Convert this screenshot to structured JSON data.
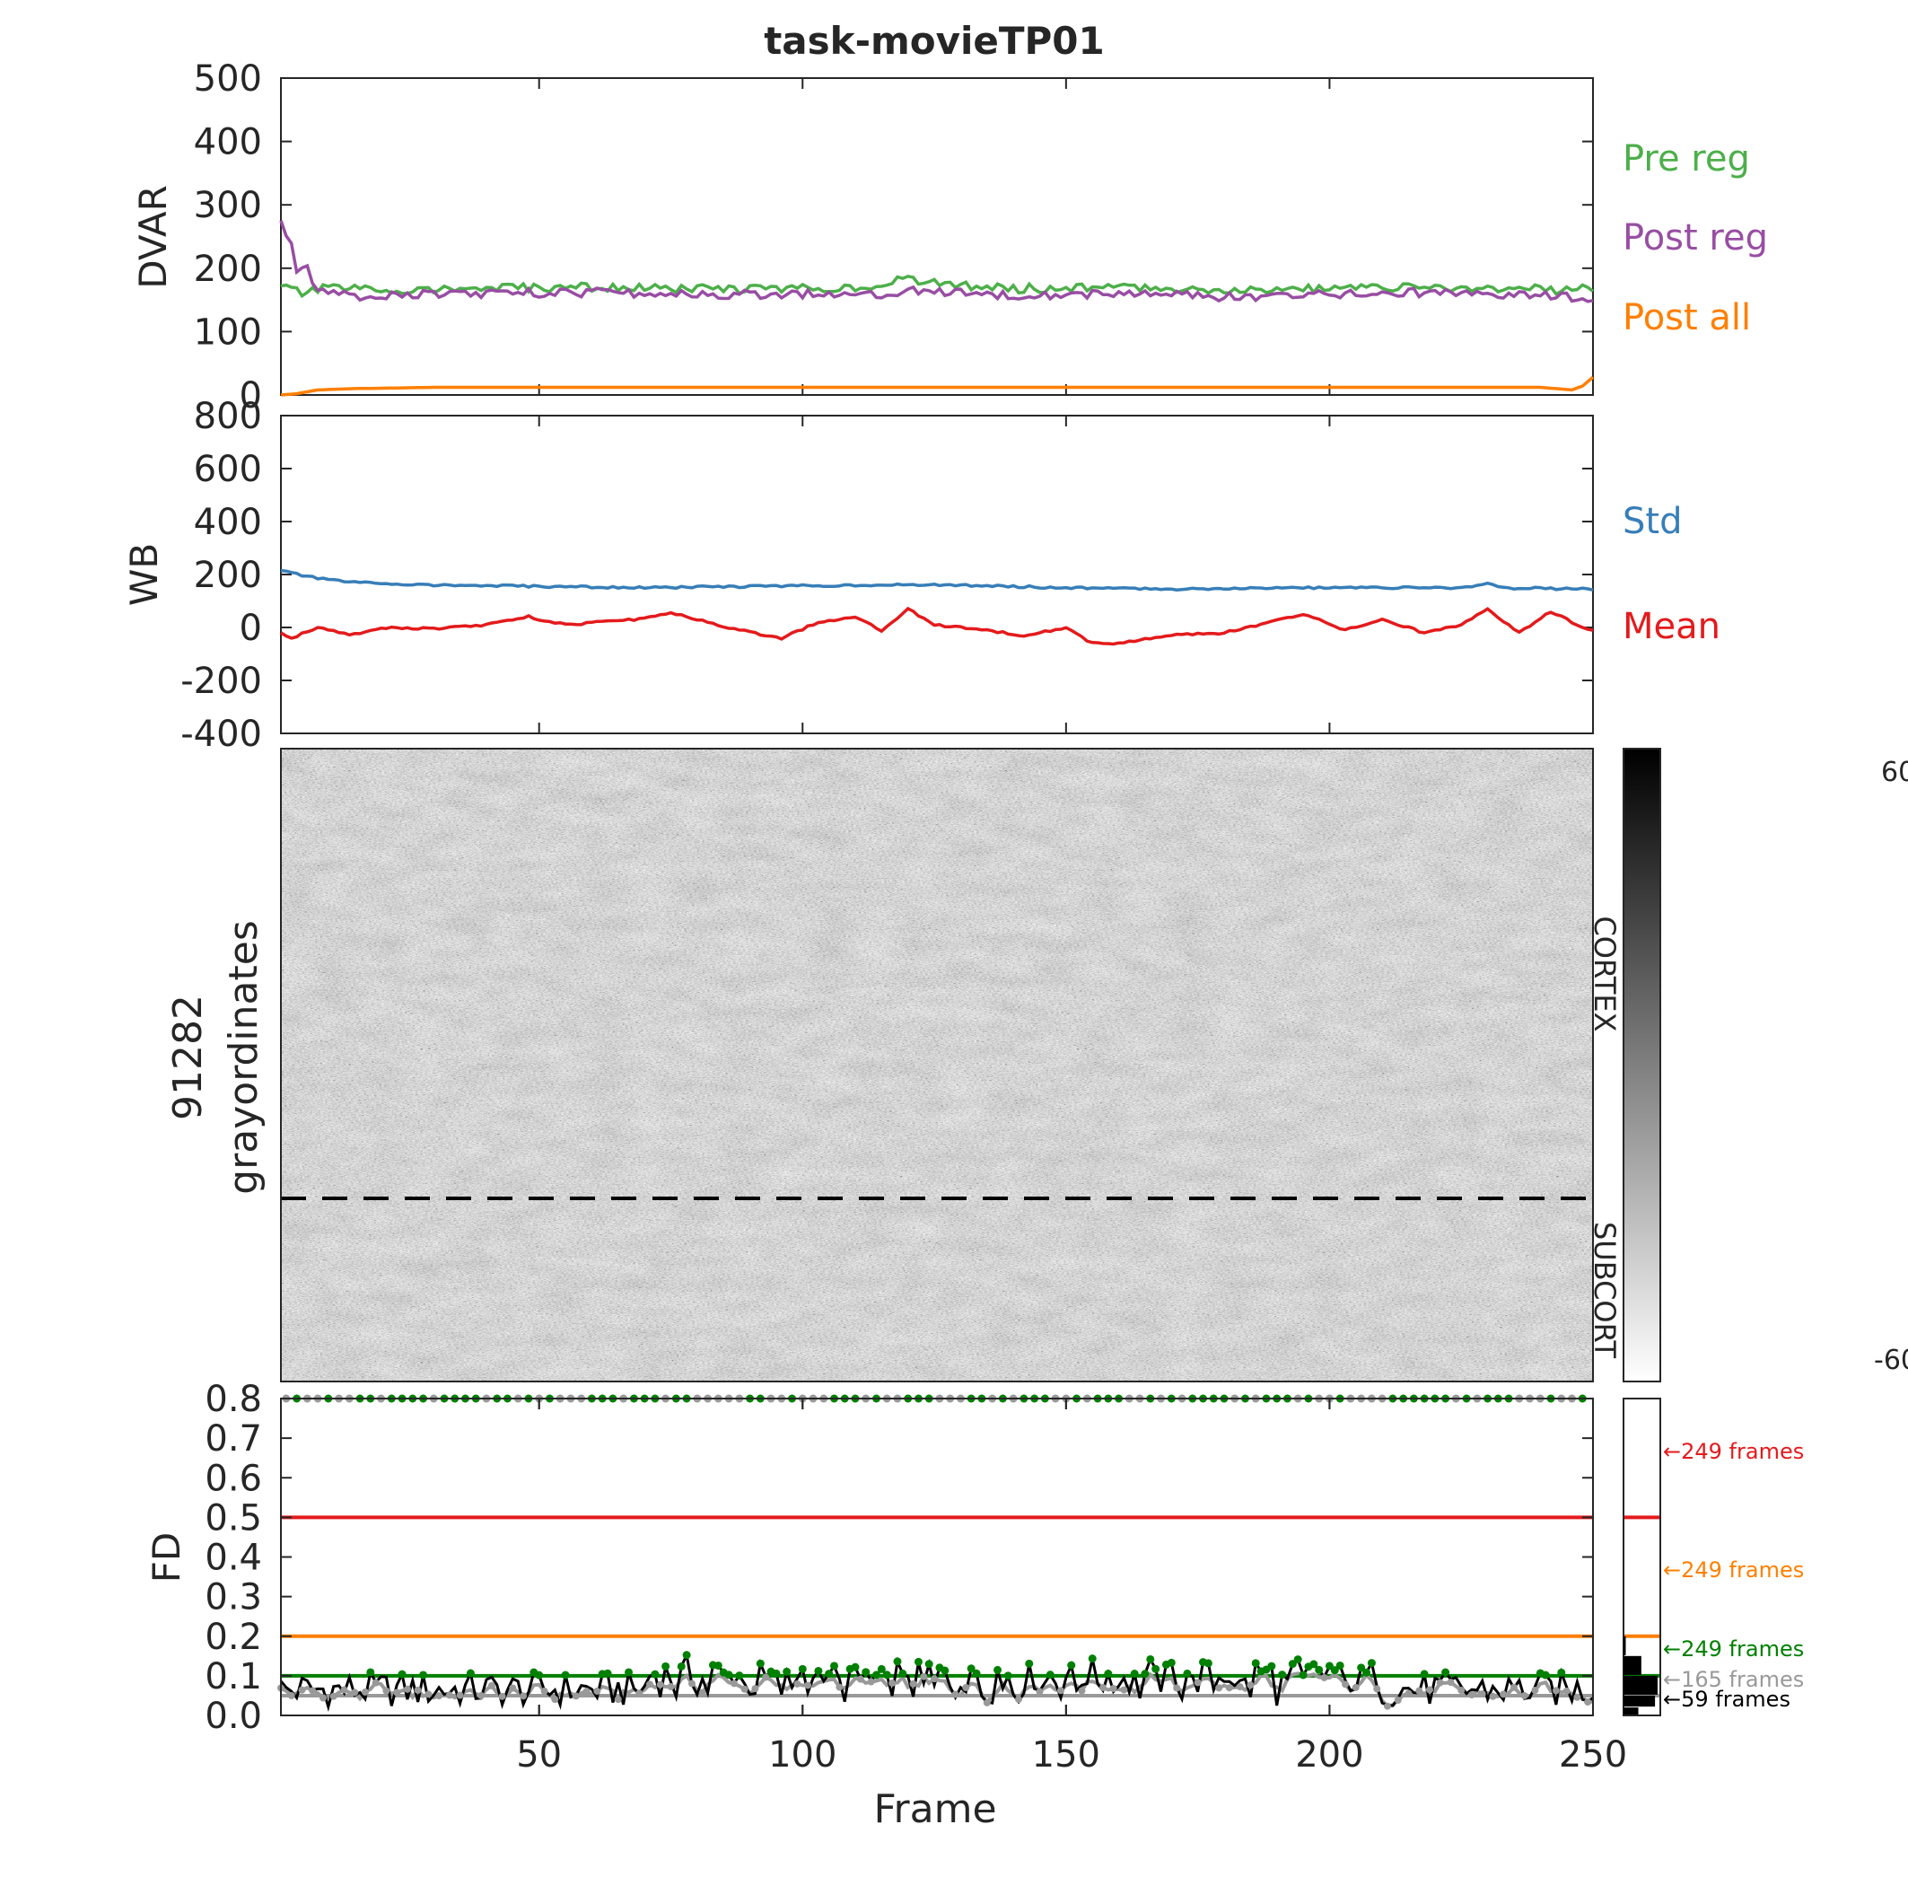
{
  "title": "task-movieTP01",
  "chart_data": [
    {
      "type": "line",
      "ylabel": "DVAR",
      "xlim": [
        1,
        250
      ],
      "ylim": [
        0,
        500
      ],
      "yticks": [
        "0",
        "100",
        "200",
        "300",
        "400",
        "500"
      ],
      "legend_placement": "right",
      "series": [
        {
          "name": "Pre reg",
          "color": "#4daf4a",
          "x": [
            1,
            3,
            6,
            10,
            20,
            40,
            60,
            80,
            100,
            115,
            120,
            122,
            140,
            160,
            180,
            200,
            215,
            230,
            245,
            250
          ],
          "values": [
            172,
            165,
            160,
            170,
            165,
            168,
            170,
            167,
            168,
            172,
            185,
            178,
            168,
            170,
            166,
            168,
            170,
            168,
            166,
            170
          ]
        },
        {
          "name": "Post reg",
          "color": "#984ea3",
          "x": [
            1,
            2,
            3,
            4,
            5,
            6,
            7,
            8,
            10,
            15,
            20,
            40,
            60,
            80,
            100,
            115,
            120,
            140,
            160,
            180,
            200,
            220,
            240,
            250
          ],
          "values": [
            275,
            255,
            240,
            200,
            195,
            205,
            180,
            165,
            160,
            155,
            158,
            160,
            162,
            158,
            160,
            160,
            165,
            158,
            160,
            155,
            158,
            162,
            158,
            150
          ]
        },
        {
          "name": "Post all",
          "color": "#ff7f00",
          "x": [
            1,
            4,
            8,
            15,
            30,
            60,
            100,
            150,
            200,
            240,
            246,
            248,
            250
          ],
          "values": [
            0,
            2,
            8,
            10,
            12,
            12,
            12,
            12,
            12,
            12,
            8,
            14,
            28
          ]
        }
      ]
    },
    {
      "type": "line",
      "ylabel": "WB",
      "xlim": [
        1,
        250
      ],
      "ylim": [
        -400,
        800
      ],
      "yticks": [
        "-400",
        "-200",
        "0",
        "200",
        "400",
        "600",
        "800"
      ],
      "legend_placement": "right",
      "series": [
        {
          "name": "Std",
          "color": "#377eb8",
          "x": [
            1,
            3,
            8,
            15,
            30,
            50,
            70,
            90,
            110,
            130,
            150,
            170,
            190,
            210,
            225,
            230,
            235,
            240,
            250
          ],
          "values": [
            215,
            205,
            185,
            170,
            160,
            155,
            150,
            155,
            160,
            160,
            150,
            145,
            150,
            150,
            150,
            165,
            145,
            148,
            145
          ]
        },
        {
          "name": "Mean",
          "color": "#e41a1c",
          "x": [
            1,
            3,
            8,
            14,
            20,
            30,
            40,
            48,
            55,
            68,
            75,
            80,
            88,
            96,
            103,
            110,
            115,
            120,
            125,
            135,
            142,
            150,
            155,
            160,
            170,
            180,
            195,
            203,
            210,
            218,
            225,
            230,
            236,
            242,
            248,
            250
          ],
          "values": [
            -20,
            -40,
            0,
            -30,
            0,
            -5,
            10,
            40,
            10,
            30,
            55,
            30,
            -10,
            -40,
            20,
            40,
            -10,
            70,
            10,
            -10,
            -30,
            0,
            -60,
            -60,
            -30,
            -20,
            50,
            -10,
            30,
            -20,
            10,
            70,
            -20,
            60,
            0,
            -10
          ]
        }
      ]
    },
    {
      "type": "heatmap",
      "ylabel_lines": [
        "91282",
        "grayordinates"
      ],
      "region_labels": [
        "CORTEX",
        "SUBCORT"
      ],
      "colorbar": {
        "max_label": "60",
        "min_label": "-60"
      },
      "xlim": [
        1,
        250
      ],
      "cortex_fraction": 0.71
    },
    {
      "type": "line",
      "ylabel": "FD",
      "xlabel": "Frame",
      "xlim": [
        1,
        250
      ],
      "ylim": [
        0,
        0.8
      ],
      "yticks": [
        "0.0",
        "0.1",
        "0.2",
        "0.3",
        "0.4",
        "0.5",
        "0.6",
        "0.7",
        "0.8"
      ],
      "xticks": [
        "50",
        "100",
        "150",
        "200",
        "250"
      ],
      "thresholds": [
        {
          "value": 0.5,
          "color": "#e41a1c",
          "label": "249 frames"
        },
        {
          "value": 0.2,
          "color": "#ff7f00",
          "label": "249 frames"
        },
        {
          "value": 0.1,
          "color": "#008000",
          "label": "249 frames"
        },
        {
          "value": 0.05,
          "color": "#999999",
          "label": "165 frames"
        },
        {
          "value": 0.0,
          "color": "#000000",
          "label": "59 frames"
        }
      ],
      "histogram": [
        {
          "bin": [
            0.0,
            0.02
          ],
          "frames": 40
        },
        {
          "bin": [
            0.02,
            0.05
          ],
          "frames": 85
        },
        {
          "bin": [
            0.05,
            0.1
          ],
          "frames": 92
        },
        {
          "bin": [
            0.1,
            0.15
          ],
          "frames": 48
        },
        {
          "bin": [
            0.15,
            0.2
          ],
          "frames": 6
        }
      ]
    }
  ]
}
